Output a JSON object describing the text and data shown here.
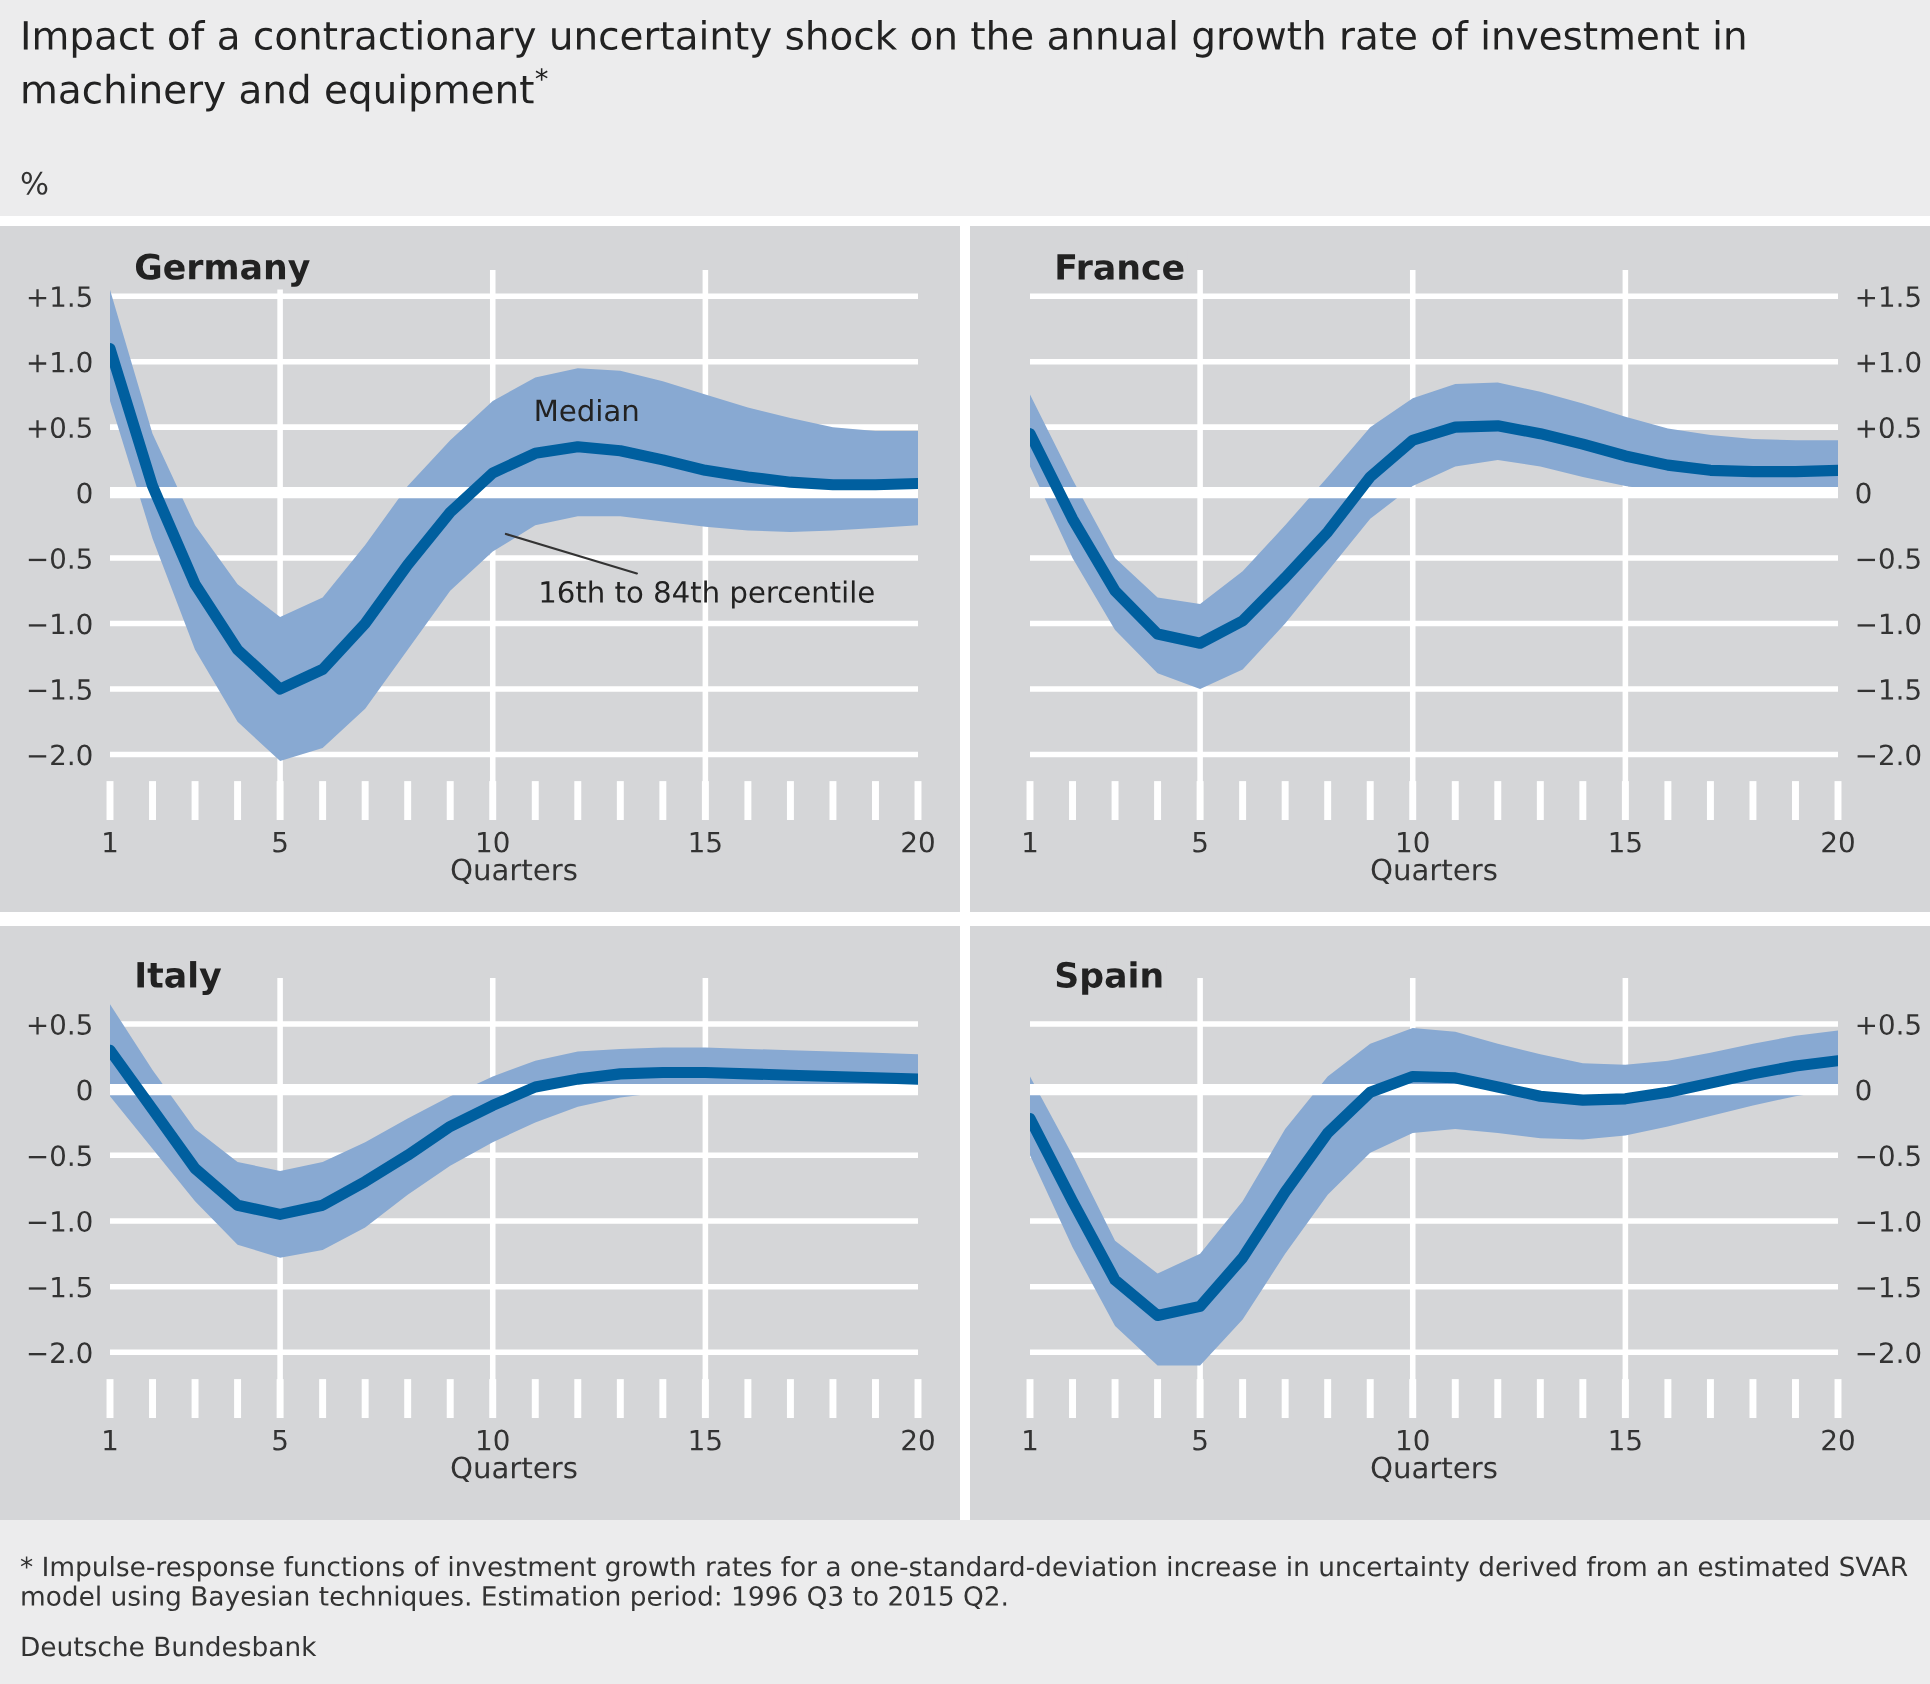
{
  "chart_data": [
    {
      "type": "line",
      "title": "Impact of a contractionary uncertainty shock on the annual growth rate of investment in machinery and equipment$^{*}$",
      "ylabel": "%",
      "subtitle": "Germany",
      "xlabel": "Quarters",
      "x": [
        1,
        2,
        3,
        4,
        5,
        6,
        7,
        8,
        9,
        10,
        11,
        12,
        13,
        14,
        15,
        16,
        17,
        18,
        19,
        20
      ],
      "xlim": [
        1,
        20
      ],
      "xticks": [
        1,
        5,
        10,
        15,
        20
      ],
      "ylim": [
        -2.5,
        1.7
      ],
      "yticks": [
        {
          "value": 1.5,
          "label": "+1.5"
        },
        {
          "value": 1.0,
          "label": "+1.0"
        },
        {
          "value": 0.5,
          "label": "+0.5"
        },
        0,
        {
          "value": -0.5,
          "label": "−0.5"
        },
        {
          "value": -1.0,
          "label": "−1.0"
        },
        {
          "value": -1.5,
          "label": "−1.5"
        },
        {
          "value": -2.0,
          "label": "−2.0"
        }
      ],
      "grid": true,
      "legend": false,
      "series": [
        {
          "color": "#005f9f",
          "values": [
            1.1,
            0.05,
            -0.7,
            -1.2,
            -1.5,
            -1.35,
            -1.0,
            -0.55,
            -0.15,
            0.15,
            0.3,
            0.35,
            0.32,
            0.25,
            0.17,
            0.12,
            0.08,
            0.06,
            0.06,
            0.07
          ],
          "lower": [
            0.7,
            -0.35,
            -1.2,
            -1.75,
            -2.05,
            -1.95,
            -1.65,
            -1.2,
            -0.75,
            -0.45,
            -0.25,
            -0.18,
            -0.18,
            -0.22,
            -0.26,
            -0.29,
            -0.3,
            -0.29,
            -0.27,
            -0.25
          ],
          "upper": [
            1.55,
            0.45,
            -0.25,
            -0.7,
            -0.95,
            -0.8,
            -0.4,
            0.05,
            0.4,
            0.7,
            0.88,
            0.95,
            0.93,
            0.85,
            0.75,
            0.65,
            0.57,
            0.5,
            0.47,
            0.47
          ]
        }
      ],
      "annotations": [
        "Median",
        "16th to 84th percentile"
      ]
    },
    {
      "type": "line",
      "subtitle": "France",
      "xlabel": "Quarters",
      "x": [
        1,
        2,
        3,
        4,
        5,
        6,
        7,
        8,
        9,
        10,
        11,
        12,
        13,
        14,
        15,
        16,
        17,
        18,
        19,
        20
      ],
      "xlim": [
        1,
        20
      ],
      "xticks": [
        1,
        5,
        10,
        15,
        20
      ],
      "ylim": [
        -2.5,
        1.7
      ],
      "yticks": [
        {
          "value": 1.5,
          "label": "+1.5"
        },
        {
          "value": 1.0,
          "label": "+1.0"
        },
        {
          "value": 0.5,
          "label": "+0.5"
        },
        0,
        {
          "value": -0.5,
          "label": "−0.5"
        },
        {
          "value": -1.0,
          "label": "−1.0"
        },
        {
          "value": -1.5,
          "label": "−1.5"
        },
        {
          "value": -2.0,
          "label": "−2.0"
        }
      ],
      "grid": true,
      "legend": false,
      "series": [
        {
          "color": "#005f9f",
          "values": [
            0.45,
            -0.2,
            -0.75,
            -1.08,
            -1.15,
            -0.98,
            -0.65,
            -0.3,
            0.12,
            0.4,
            0.5,
            0.51,
            0.45,
            0.37,
            0.28,
            0.21,
            0.17,
            0.16,
            0.16,
            0.17
          ],
          "lower": [
            0.2,
            -0.5,
            -1.05,
            -1.38,
            -1.5,
            -1.35,
            -1.0,
            -0.6,
            -0.2,
            0.05,
            0.2,
            0.25,
            0.2,
            0.12,
            0.05,
            0.0,
            -0.03,
            -0.02,
            0.0,
            0.02
          ],
          "upper": [
            0.75,
            0.1,
            -0.5,
            -0.8,
            -0.85,
            -0.6,
            -0.25,
            0.12,
            0.5,
            0.72,
            0.83,
            0.84,
            0.77,
            0.68,
            0.58,
            0.49,
            0.44,
            0.41,
            0.4,
            0.4
          ]
        }
      ]
    },
    {
      "type": "line",
      "subtitle": "Italy",
      "xlabel": "Quarters",
      "x": [
        1,
        2,
        3,
        4,
        5,
        6,
        7,
        8,
        9,
        10,
        11,
        12,
        13,
        14,
        15,
        16,
        17,
        18,
        19,
        20
      ],
      "xlim": [
        1,
        20
      ],
      "xticks": [
        1,
        5,
        10,
        15,
        20
      ],
      "ylim": [
        -2.5,
        0.85
      ],
      "yticks": [
        {
          "value": 0.5,
          "label": "+0.5"
        },
        0,
        {
          "value": -0.5,
          "label": "−0.5"
        },
        {
          "value": -1.0,
          "label": "−1.0"
        },
        {
          "value": -1.5,
          "label": "−1.5"
        },
        {
          "value": -2.0,
          "label": "−2.0"
        }
      ],
      "grid": true,
      "legend": false,
      "series": [
        {
          "color": "#005f9f",
          "values": [
            0.3,
            -0.15,
            -0.6,
            -0.88,
            -0.95,
            -0.88,
            -0.7,
            -0.5,
            -0.28,
            -0.12,
            0.02,
            0.08,
            0.12,
            0.13,
            0.13,
            0.12,
            0.11,
            0.1,
            0.09,
            0.08
          ],
          "lower": [
            -0.05,
            -0.45,
            -0.85,
            -1.18,
            -1.28,
            -1.22,
            -1.05,
            -0.8,
            -0.58,
            -0.4,
            -0.25,
            -0.13,
            -0.06,
            -0.02,
            0.0,
            0.02,
            0.02,
            0.02,
            0.02,
            0.02
          ],
          "upper": [
            0.65,
            0.15,
            -0.3,
            -0.55,
            -0.62,
            -0.55,
            -0.4,
            -0.22,
            -0.05,
            0.1,
            0.22,
            0.29,
            0.31,
            0.32,
            0.32,
            0.31,
            0.3,
            0.29,
            0.28,
            0.27
          ]
        }
      ]
    },
    {
      "type": "line",
      "subtitle": "Spain",
      "xlabel": "Quarters",
      "x": [
        1,
        2,
        3,
        4,
        5,
        6,
        7,
        8,
        9,
        10,
        11,
        12,
        13,
        14,
        15,
        16,
        17,
        18,
        19,
        20
      ],
      "xlim": [
        1,
        20
      ],
      "xticks": [
        1,
        5,
        10,
        15,
        20
      ],
      "ylim": [
        -2.5,
        0.85
      ],
      "yticks": [
        {
          "value": 0.5,
          "label": "+0.5"
        },
        0,
        {
          "value": -0.5,
          "label": "−0.5"
        },
        {
          "value": -1.0,
          "label": "−1.0"
        },
        {
          "value": -1.5,
          "label": "−1.5"
        },
        {
          "value": -2.0,
          "label": "−2.0"
        }
      ],
      "grid": true,
      "legend": false,
      "series": [
        {
          "color": "#005f9f",
          "values": [
            -0.22,
            -0.85,
            -1.45,
            -1.72,
            -1.65,
            -1.28,
            -0.78,
            -0.33,
            -0.02,
            0.1,
            0.09,
            0.02,
            -0.05,
            -0.08,
            -0.07,
            -0.02,
            0.05,
            0.12,
            0.18,
            0.22
          ],
          "lower": [
            -0.5,
            -1.2,
            -1.8,
            -2.1,
            -2.1,
            -1.75,
            -1.25,
            -0.8,
            -0.48,
            -0.33,
            -0.3,
            -0.33,
            -0.37,
            -0.38,
            -0.35,
            -0.28,
            -0.2,
            -0.12,
            -0.05,
            0.0
          ],
          "upper": [
            0.1,
            -0.5,
            -1.15,
            -1.4,
            -1.25,
            -0.85,
            -0.3,
            0.1,
            0.35,
            0.47,
            0.44,
            0.35,
            0.27,
            0.2,
            0.19,
            0.22,
            0.28,
            0.35,
            0.41,
            0.45
          ]
        }
      ],
      "annotations": [
        "* Impulse-response functions of investment growth rates for a one-standard-deviation increase in uncertainty derived from an estimated SVAR model using Bayesian techniques. Estimation period: 1996 Q3 to 2015 Q2.",
        "Deutsche Bundesbank"
      ]
    }
  ]
}
